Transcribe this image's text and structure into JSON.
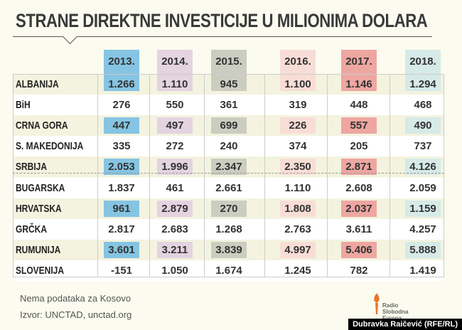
{
  "chart_data": {
    "type": "table",
    "title": "STRANE DIREKTNE INVESTICIJE U MILIONIMA DOLARA",
    "columns": [
      "2013.",
      "2014.",
      "2015.",
      "2016.",
      "2017.",
      "2018."
    ],
    "column_colors": [
      "#85c4e2",
      "#e4d3e1",
      "#cbcdc1",
      "#f8ddd6",
      "#eea6a1",
      "#d6eae7"
    ],
    "rows": [
      {
        "label": "ALBANIJA",
        "values": [
          "1.266",
          "1.110",
          "945",
          "1.100",
          "1.146",
          "1.294"
        ]
      },
      {
        "label": "BiH",
        "values": [
          "276",
          "550",
          "361",
          "319",
          "448",
          "468"
        ]
      },
      {
        "label": "CRNA GORA",
        "values": [
          "447",
          "497",
          "699",
          "226",
          "557",
          "490"
        ]
      },
      {
        "label": "S. MAKEDONIJA",
        "values": [
          "335",
          "272",
          "240",
          "374",
          "205",
          "737"
        ]
      },
      {
        "label": "SRBIJA",
        "values": [
          "2.053",
          "1.996",
          "2.347",
          "2.350",
          "2.871",
          "4.126"
        ]
      },
      {
        "label": "BUGARSKA",
        "values": [
          "1.837",
          "461",
          "2.661",
          "1.110",
          "2.608",
          "2.059"
        ]
      },
      {
        "label": "HRVATSKA",
        "values": [
          "961",
          "2.879",
          "270",
          "1.808",
          "2.037",
          "1.159"
        ]
      },
      {
        "label": "GRČKA",
        "values": [
          "2.817",
          "2.683",
          "1.268",
          "2.763",
          "3.611",
          "4.257"
        ]
      },
      {
        "label": "RUMUNIJA",
        "values": [
          "3.601",
          "3.211",
          "3.839",
          "4.997",
          "5.406",
          "5.888"
        ]
      },
      {
        "label": "SLOVENIJA",
        "values": [
          "-151",
          "1.050",
          "1.674",
          "1.245",
          "782",
          "1.419"
        ]
      }
    ]
  },
  "footer": {
    "note": "Nema podataka za Kosovo",
    "source": "Izvor: UNCTAD, unctad.org",
    "logo": "Radio Slobodna Evropa",
    "credit": "Dubravka Raičević (RFE/RL)"
  }
}
